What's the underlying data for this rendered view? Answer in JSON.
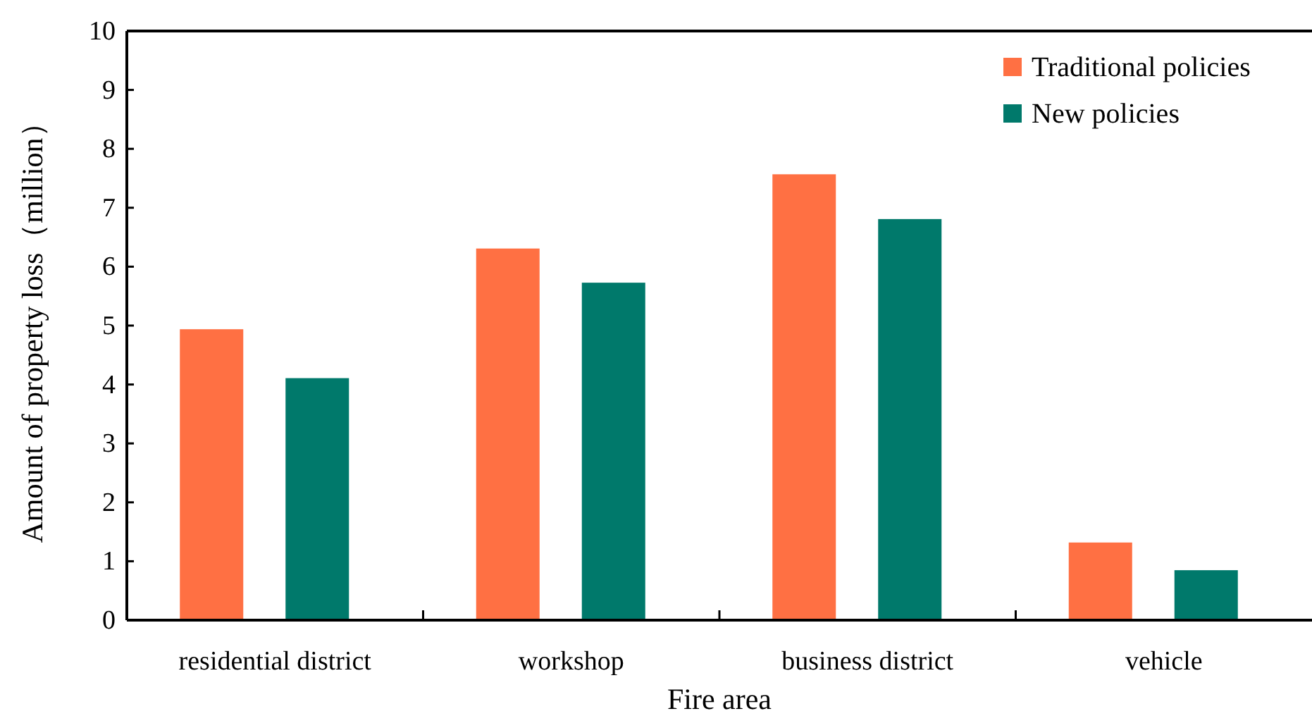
{
  "chart_data": {
    "type": "bar",
    "xlabel": "Fire area",
    "ylabel": "Amount of property loss（million）",
    "categories": [
      "residential district",
      "workshop",
      "business district",
      "vehicle"
    ],
    "series": [
      {
        "name": "Traditional policies",
        "color": "#ff7043",
        "values": [
          4.95,
          6.32,
          7.58,
          1.33
        ]
      },
      {
        "name": "New policies",
        "color": "#00796b",
        "values": [
          4.12,
          5.74,
          6.82,
          0.86
        ]
      }
    ],
    "ylim": [
      0,
      10
    ],
    "yticks": [
      0,
      1,
      2,
      3,
      4,
      5,
      6,
      7,
      8,
      9,
      10
    ],
    "grid": false,
    "legend": "top right"
  }
}
